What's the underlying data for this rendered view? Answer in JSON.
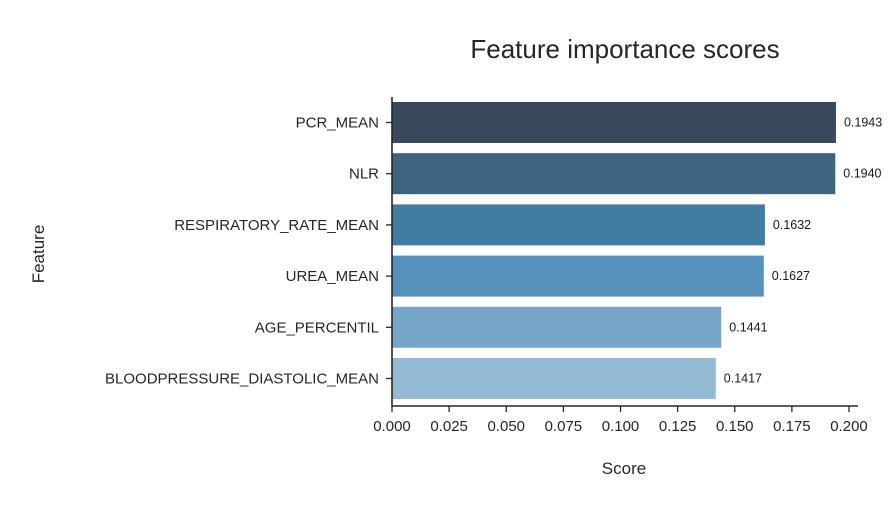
{
  "chart_data": {
    "type": "bar",
    "orientation": "horizontal",
    "title": "Feature importance scores",
    "xlabel": "Score",
    "ylabel": "Feature",
    "xlim": [
      0,
      0.2
    ],
    "xticks": [
      "0.000",
      "0.025",
      "0.050",
      "0.075",
      "0.100",
      "0.125",
      "0.150",
      "0.175",
      "0.200"
    ],
    "categories": [
      "PCR_MEAN",
      "NLR",
      "RESPIRATORY_RATE_MEAN",
      "UREA_MEAN",
      "AGE_PERCENTIL",
      "BLOODPRESSURE_DIASTOLIC_MEAN"
    ],
    "values": [
      0.1943,
      0.194,
      0.1632,
      0.1627,
      0.1441,
      0.1417
    ],
    "value_labels": [
      "0.1943",
      "0.1940",
      "0.1632",
      "0.1627",
      "0.1441",
      "0.1417"
    ],
    "colors": [
      "#37495a",
      "#3c6380",
      "#417da3",
      "#5591bb",
      "#75a6c8",
      "#94bad3"
    ],
    "grid": false,
    "legend": "none"
  }
}
